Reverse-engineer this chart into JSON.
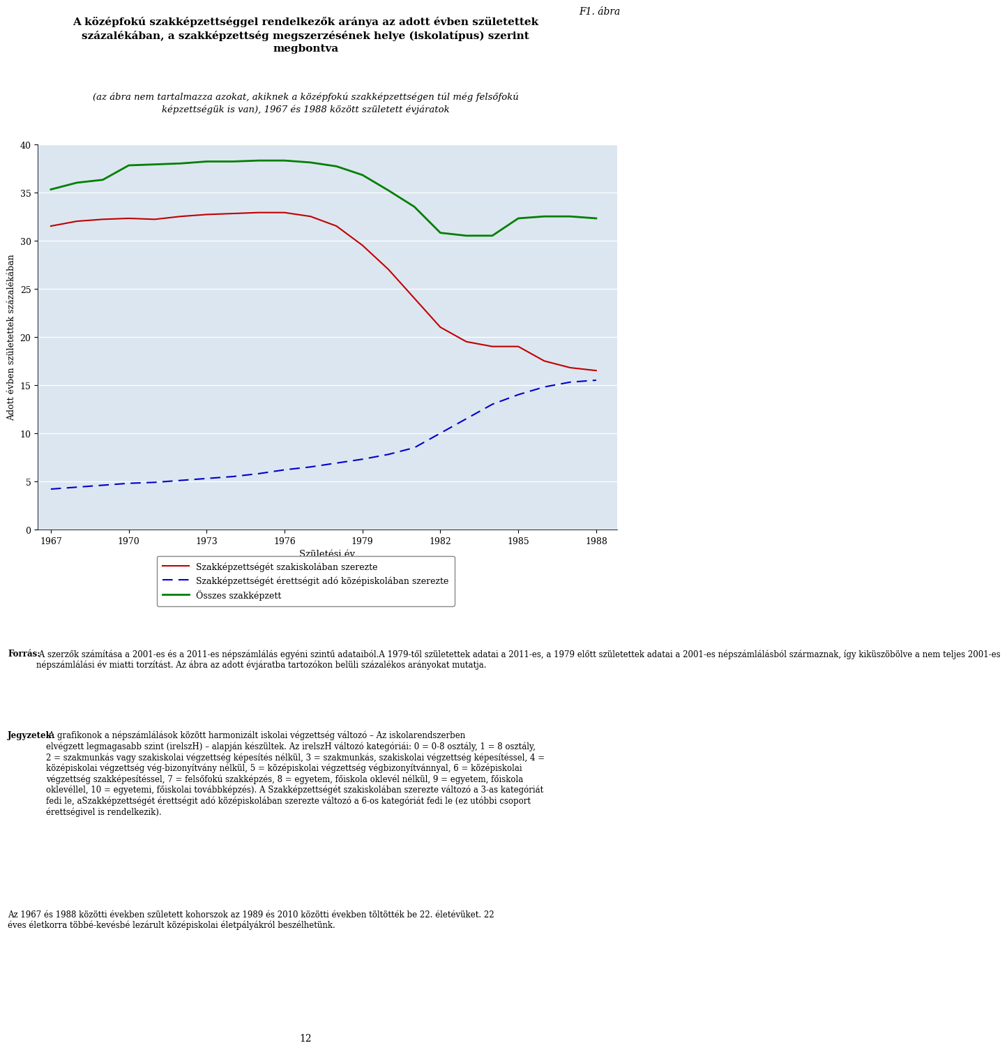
{
  "title_line1": "F1. ábra",
  "title_main": "A középfokú szakképzettséggel rendelkezők aránya az adott évben születettek\nszázalékában, a szakképzettség megszerzésének helye (iskolatípus) szerint\nmegbontva",
  "subtitle": "(az ábra nem tartalmazza azokat, akiknek a középfokú szakképzettségen túl még felsőfokú\nképzettségük is van), 1967 és 1988 között született évjáratok",
  "xlabel": "Születési év",
  "ylabel": "Adott évben születettek százalékában",
  "ylim": [
    0,
    40
  ],
  "yticks": [
    0,
    5,
    10,
    15,
    20,
    25,
    30,
    35,
    40
  ],
  "xticks": [
    1967,
    1970,
    1973,
    1976,
    1979,
    1982,
    1985,
    1988
  ],
  "background_color": "#dce6f0",
  "years": [
    1967,
    1968,
    1969,
    1970,
    1971,
    1972,
    1973,
    1974,
    1975,
    1976,
    1977,
    1978,
    1979,
    1980,
    1981,
    1982,
    1983,
    1984,
    1985,
    1986,
    1987,
    1988
  ],
  "red_line": [
    31.5,
    32.0,
    32.2,
    32.3,
    32.2,
    32.5,
    32.7,
    32.8,
    32.9,
    32.9,
    32.5,
    31.5,
    29.5,
    27.0,
    24.0,
    21.0,
    19.5,
    19.0,
    19.0,
    17.5,
    16.8,
    16.5
  ],
  "blue_line": [
    4.2,
    4.4,
    4.6,
    4.8,
    4.9,
    5.1,
    5.3,
    5.5,
    5.8,
    6.2,
    6.5,
    6.9,
    7.3,
    7.8,
    8.5,
    10.0,
    11.5,
    13.0,
    14.0,
    14.8,
    15.3,
    15.5
  ],
  "green_line": [
    35.3,
    36.0,
    36.3,
    37.8,
    37.9,
    38.0,
    38.2,
    38.2,
    38.3,
    38.3,
    38.1,
    37.7,
    36.8,
    35.2,
    33.5,
    30.8,
    30.5,
    30.5,
    32.3,
    32.5,
    32.5,
    32.3
  ],
  "red_color": "#c00000",
  "blue_color": "#0000cc",
  "green_color": "#008000",
  "legend_labels": [
    "Szakképzettségét szakiskolában szerezte",
    "Szakképzettségét érettségit adó középiskolában szerezte",
    "Összes szakképzett"
  ],
  "source_bold": "Forrás:",
  "source_text": " A szerzők számítása a 2001-es és a 2011-es népszámlálás egyéni szintű adataiból.",
  "source_text2": "A 1979-től születettek adatai a 2011-es, a 1979 előtt születettek adatai a 2001-es népszámlálásból származnak, így kiküszöbölve a nem teljes 2001-es\nnépszámlálási év miatti torzítást. Az ábra az adott évjáratba tartozókon belüli százalékos arányokat mutatja.",
  "notes_bold": "Jegyzetek:",
  "notes_text": " A grafikonok a népszámlálások között harmonizált iskolai végzettség változó – Az iskolarendszerben\nelvégzett legmagasabb szint (irelszH) – alapján készültek. Az irelszH változó kategóriái: 0 = 0-8 osztály, 1 = 8 osztály,\n2 = szakmunkás vagy szakiskolai végzettség képesítés nélkül, 3 = szakmunkás, szakiskolai végzettség képesítéssel, 4 =\nközépiskolai végzettség vég-bizonyítvány nélkül, 5 = középiskolai végzettség végbizonyítvánnyal, 6 = középiskolai\nvégzettség szakképesítéssel, 7 = felsőfokú szakképzés, 8 = egyetem, főiskola oklevél nélkül, 9 = egyetem, főiskola\noklevéllel, 10 = egyetemi, főiskolai továbbképzés). A Szakképzettségét szakiskolában szerezte változó a 3-as kategóriát\nfedi le, aSzakképzettségét érettségit adó középiskolában szerezte változó a 6-os kategóriát fedi le (ez utóbbi csoport\nérettségivel is rendelkezik).",
  "bottom_text": "Az 1967 és 1988 közötti években született kohorszok az 1989 és 2010 közötti években töltötték be 22. életévüket. 22\néves életkorra többé-kevésbé lezárult középiskolai életpályákról beszélhetünk."
}
